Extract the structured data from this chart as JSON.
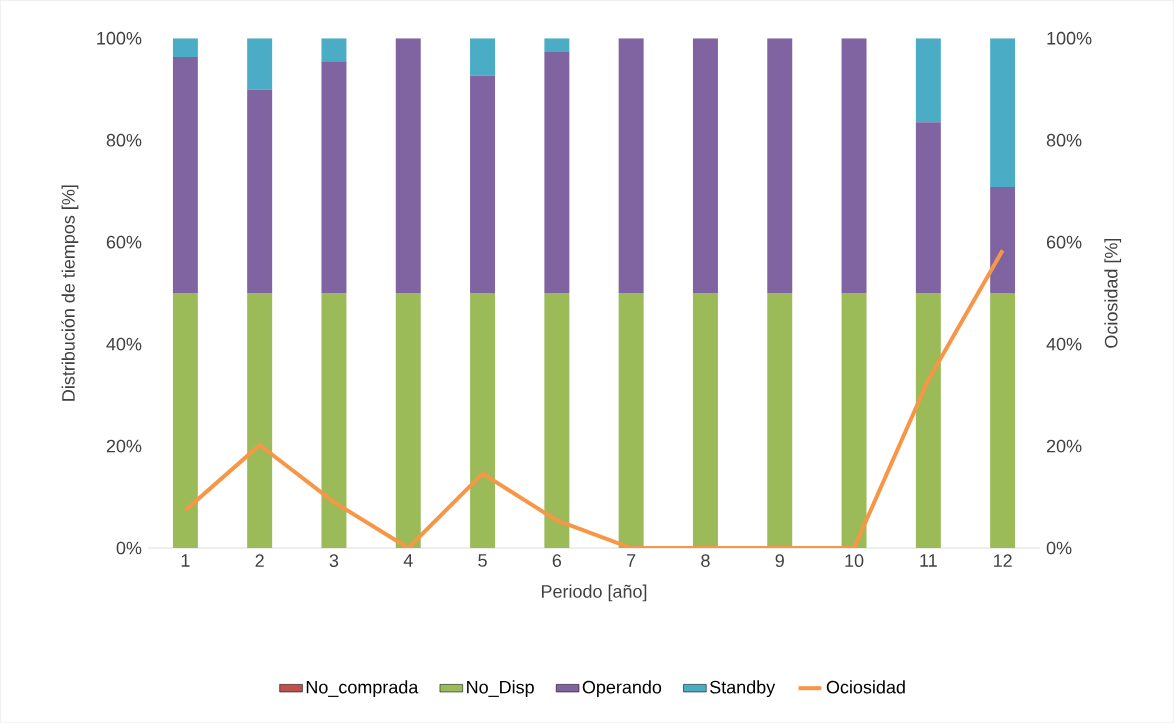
{
  "chart_data": {
    "type": "bar",
    "stacked": true,
    "xlabel": "Periodo [año]",
    "ylabel": "Distribución de tiempos [%]",
    "y2label": "Ociosidad [%]",
    "categories": [
      "1",
      "2",
      "3",
      "4",
      "5",
      "6",
      "7",
      "8",
      "9",
      "10",
      "11",
      "12"
    ],
    "series": [
      {
        "name": "No_comprada",
        "color": "#c0504d",
        "values": [
          0,
          0,
          0,
          0,
          0,
          0,
          0,
          0,
          0,
          0,
          0,
          0
        ]
      },
      {
        "name": "No_Disp",
        "color": "#9bbb59",
        "values": [
          50,
          50,
          50,
          50,
          50,
          50,
          50,
          50,
          50,
          50,
          50,
          50
        ]
      },
      {
        "name": "Operando",
        "color": "#8064a2",
        "values": [
          46.3,
          39.9,
          45.5,
          50,
          42.7,
          47.3,
          50,
          50,
          50,
          50,
          33.5,
          20.8
        ]
      },
      {
        "name": "Standby",
        "color": "#4bacc6",
        "values": [
          3.7,
          10.1,
          4.5,
          0,
          7.3,
          2.7,
          0,
          0,
          0,
          0,
          16.5,
          29.2
        ]
      },
      {
        "name": "Ociosidad",
        "color": "#f79646",
        "type": "line",
        "axis": "y2",
        "values": [
          7.4,
          20.2,
          9,
          0,
          14.6,
          5.4,
          0,
          0,
          0,
          0,
          33,
          58.4
        ]
      }
    ],
    "ylim": [
      0,
      100
    ],
    "yticks": [
      {
        "value": 0,
        "label": "0%"
      },
      {
        "value": 20,
        "label": "20%"
      },
      {
        "value": 40,
        "label": "40%"
      },
      {
        "value": 60,
        "label": "60%"
      },
      {
        "value": 80,
        "label": "80%"
      },
      {
        "value": 100,
        "label": "100%"
      }
    ],
    "y2lim": [
      0,
      100
    ],
    "y2ticks": [
      {
        "value": 0,
        "label": "0%"
      },
      {
        "value": 20,
        "label": "20%"
      },
      {
        "value": 40,
        "label": "40%"
      },
      {
        "value": 60,
        "label": "60%"
      },
      {
        "value": 80,
        "label": "80%"
      },
      {
        "value": 100,
        "label": "100%"
      }
    ],
    "grid": false,
    "legend": "bottom",
    "marker": "none",
    "line_style": "solid"
  }
}
